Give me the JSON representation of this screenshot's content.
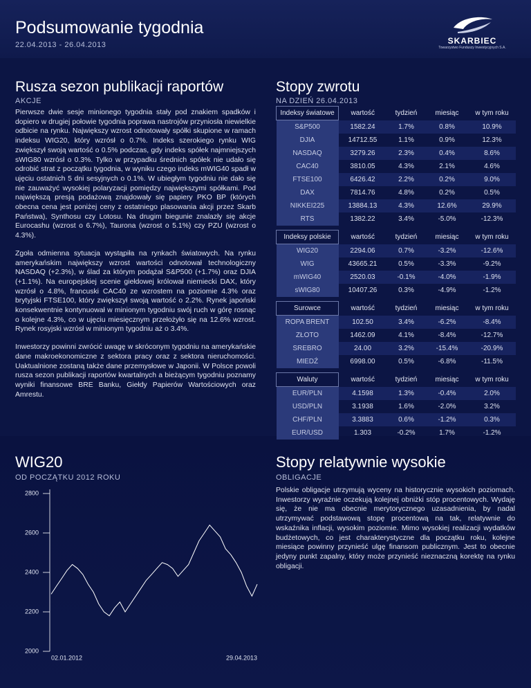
{
  "header": {
    "title": "Podsumowanie tygodnia",
    "dates": "22.04.2013 - 26.04.2013",
    "logo_name": "SKARBIEC",
    "logo_tagline": "Towarzystwo Funduszy Inwestycyjnych S.A."
  },
  "left": {
    "title": "Rusza sezon publikacji raportów",
    "subtitle": "AKCJE",
    "paragraphs": [
      "Pierwsze dwie sesje minionego tygodnia stały pod znakiem spadków i dopiero w drugiej połowie tygodnia poprawa nastrojów przyniosła niewielkie odbicie na rynku. Największy wzrost odnotowały spółki skupione w ramach indeksu WIG20, który wzrósł o 0.7%. Indeks szerokiego rynku WIG zwiększył swoją wartość o 0.5% podczas, gdy indeks spółek najmniejszych sWIG80 wzrósł o 0.3%. Tylko w przypadku średnich spółek nie udało się odrobić strat z początku tygodnia, w wyniku czego indeks mWIG40 spadł w ujęciu ostatnich 5 dni sesyjnych o 0.1%. W ubiegłym tygodniu nie dało się nie zauważyć wysokiej polaryzacji pomiędzy największymi spółkami. Pod największą presją podażową znajdowały się papiery PKO BP (których obecna cena jest poniżej ceny z ostatniego plasowania akcji przez Skarb Państwa), Synthosu czy Lotosu. Na drugim biegunie znalazły się akcje Eurocashu (wzrost o 6.7%), Taurona (wzrost o 5.1%) czy PZU (wzrost o 4.3%).",
      "Zgoła odmienna sytuacja wystąpiła na rynkach światowych. Na rynku amerykańskim największy wzrost wartości odnotował technologiczny NASDAQ (+2.3%), w ślad za którym podążał S&P500 (+1.7%) oraz DJIA (+1.1%). Na europejskiej scenie giełdowej królował niemiecki DAX, który wzrósł o 4.8%, francuski CAC40 ze wzrostem na poziomie 4.3% oraz brytyjski FTSE100, który zwiększył swoją wartość o 2.2%. Rynek japoński konsekwentnie kontynuował w minionym tygodniu swój ruch w górę rosnąc o kolejne 4.3%, co w ujęciu miesięcznym przełożyło się na 12.6% wzrost. Rynek rosyjski wzrósł w minionym tygodniu aż o 3.4%.",
      "Inwestorzy powinni zwrócić uwagę w skróconym tygodniu na amerykańskie dane makroekonomiczne z sektora pracy oraz z sektora nieruchomości. Uaktualnione zostaną także dane przemysłowe w Japonii. W Polsce powoli rusza sezon publikacji raportów kwartalnych a bieżącym tygodniu poznamy wyniki finansowe BRE Banku, Giełdy Papierów Wartościowych oraz Amrestu."
    ]
  },
  "returns": {
    "title": "Stopy zwrotu",
    "subtitle": "NA DZIEŃ 26.04.2013",
    "tables": [
      {
        "header": [
          "Indeksy światowe",
          "wartość",
          "tydzień",
          "miesiąc",
          "w tym roku"
        ],
        "rows": [
          [
            "S&P500",
            "1582.24",
            "1.7%",
            "0.8%",
            "10.9%"
          ],
          [
            "DJIA",
            "14712.55",
            "1.1%",
            "0.9%",
            "12.3%"
          ],
          [
            "NASDAQ",
            "3279.26",
            "2.3%",
            "0.4%",
            "8.6%"
          ],
          [
            "CAC40",
            "3810.05",
            "4.3%",
            "2.1%",
            "4.6%"
          ],
          [
            "FTSE100",
            "6426.42",
            "2.2%",
            "0.2%",
            "9.0%"
          ],
          [
            "DAX",
            "7814.76",
            "4.8%",
            "0.2%",
            "0.5%"
          ],
          [
            "NIKKEI225",
            "13884.13",
            "4.3%",
            "12.6%",
            "29.9%"
          ],
          [
            "RTS",
            "1382.22",
            "3.4%",
            "-5.0%",
            "-12.3%"
          ]
        ]
      },
      {
        "header": [
          "Indeksy polskie",
          "wartość",
          "tydzień",
          "miesiąc",
          "w tym roku"
        ],
        "rows": [
          [
            "WIG20",
            "2294.06",
            "0.7%",
            "-3.2%",
            "-12.6%"
          ],
          [
            "WIG",
            "43665.21",
            "0.5%",
            "-3.3%",
            "-9.2%"
          ],
          [
            "mWIG40",
            "2520.03",
            "-0.1%",
            "-4.0%",
            "-1.9%"
          ],
          [
            "sWIG80",
            "10407.26",
            "0.3%",
            "-4.9%",
            "-1.2%"
          ]
        ]
      },
      {
        "header": [
          "Surowce",
          "wartość",
          "tydzień",
          "miesiąc",
          "w tym roku"
        ],
        "rows": [
          [
            "ROPA BRENT",
            "102.50",
            "3.4%",
            "-6.2%",
            "-8.4%"
          ],
          [
            "ZŁOTO",
            "1462.09",
            "4.1%",
            "-8.4%",
            "-12.7%"
          ],
          [
            "SREBRO",
            "24.00",
            "3.2%",
            "-15.4%",
            "-20.9%"
          ],
          [
            "MIEDŹ",
            "6998.00",
            "0.5%",
            "-6.8%",
            "-11.5%"
          ]
        ]
      },
      {
        "header": [
          "Waluty",
          "wartość",
          "tydzień",
          "miesiąc",
          "w tym roku"
        ],
        "rows": [
          [
            "EUR/PLN",
            "4.1598",
            "1.3%",
            "-0.4%",
            "2.0%"
          ],
          [
            "USD/PLN",
            "3.1938",
            "1.6%",
            "-2.0%",
            "3.2%"
          ],
          [
            "CHF/PLN",
            "3.3883",
            "0.6%",
            "-1.2%",
            "0.3%"
          ],
          [
            "EUR/USD",
            "1.303",
            "-0.2%",
            "1.7%",
            "-1.2%"
          ]
        ]
      }
    ]
  },
  "chart_data": {
    "type": "line",
    "title": "WIG20",
    "subtitle": "OD POCZĄTKU 2012 ROKU",
    "categories": [
      "02.01.2012",
      null,
      null,
      null,
      null,
      null,
      null,
      null,
      null,
      null,
      null,
      null,
      null,
      null,
      null,
      null,
      null,
      null,
      null,
      null,
      null,
      null,
      null,
      null,
      null,
      null,
      null,
      null,
      null,
      null,
      null,
      null,
      null,
      null,
      null,
      null,
      null,
      null,
      null,
      "29.04.2013"
    ],
    "values": [
      2290,
      2330,
      2370,
      2410,
      2440,
      2420,
      2390,
      2340,
      2300,
      2240,
      2200,
      2180,
      2220,
      2250,
      2200,
      2240,
      2280,
      2320,
      2360,
      2390,
      2420,
      2450,
      2440,
      2420,
      2380,
      2410,
      2440,
      2500,
      2560,
      2600,
      2640,
      2610,
      2580,
      2520,
      2490,
      2450,
      2400,
      2330,
      2280,
      2340
    ],
    "color": "#ffffff",
    "ylim": [
      2000,
      2800
    ],
    "yticks": [
      2000,
      2200,
      2400,
      2600,
      2800
    ]
  },
  "bonds": {
    "title": "Stopy relatywnie wysokie",
    "subtitle": "OBLIGACJE",
    "paragraph": "Polskie obligacje utrzymują wyceny na historycznie wysokich poziomach. Inwestorzy wyraźnie oczekują kolejnej obniżki stóp procentowych. Wydaję się, że nie ma obecnie merytorycznego uzasadnienia, by nadal utrzymywać podstawową stopę procentową na tak, relatywnie do wskaźnika inflacji, wysokim poziomie. Mimo wysokiej realizacji wydatków budżetowych, co jest charakterystyczne dla początku roku, kolejne miesiące powinny przynieść ulgę finansom publicznym. Jest to obecnie jedyny punkt zapalny, który może przynieść nieznaczną korektę na rynku obligacji."
  }
}
